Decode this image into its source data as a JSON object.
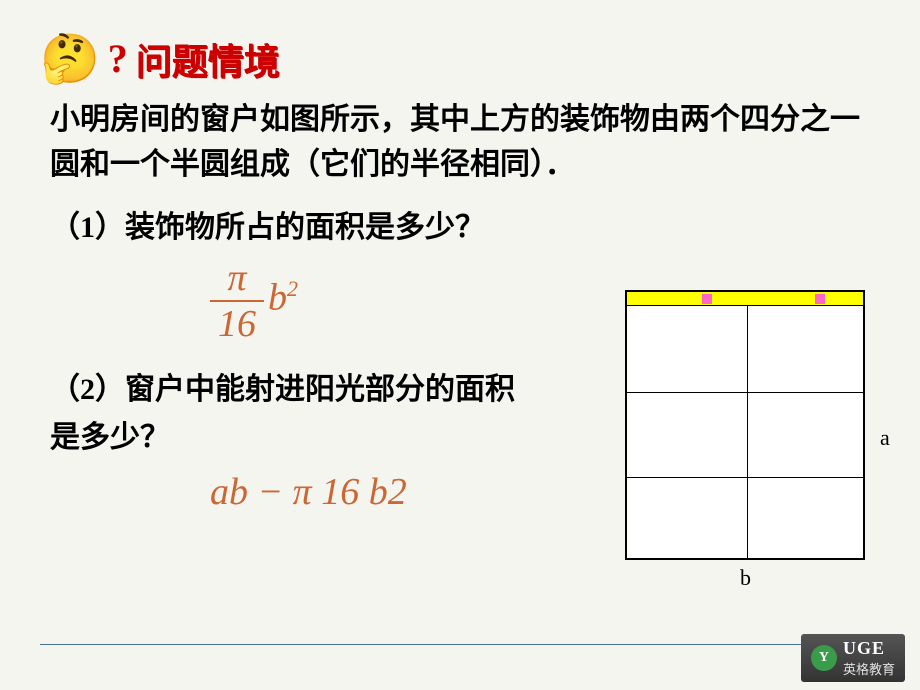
{
  "header": {
    "emoji": "🤔",
    "question_mark": "?",
    "title": "问题情境"
  },
  "problem": {
    "description": "小明房间的窗户如图所示，其中上方的装饰物由两个四分之一圆和一个半圆组成（它们的半径相同）．",
    "q1": "（1）装饰物所占的面积是多少？",
    "formula1": {
      "frac_top": "π",
      "frac_bot": "16",
      "variable": "b",
      "exponent": "2"
    },
    "q2": "（2）窗户中能射进阳光部分的面积是多少？",
    "formula2": {
      "prefix": "ab",
      "op": "−",
      "frac_top": "π",
      "frac_bot": "16",
      "variable": "b",
      "exponent": "2"
    }
  },
  "diagram": {
    "label_a": "a",
    "label_b": "b"
  },
  "footer": {
    "logo_text": "UGE",
    "logo_y": "Y",
    "logo_sub": "英格教育"
  }
}
